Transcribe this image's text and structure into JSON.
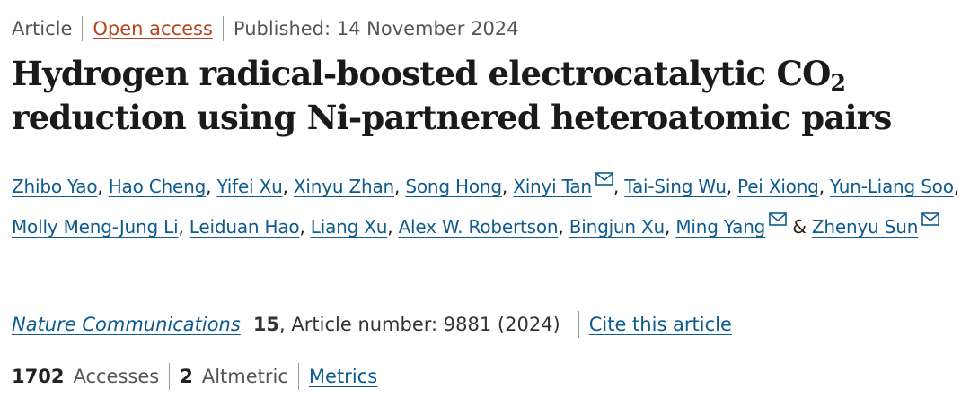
{
  "meta": {
    "type": "Article",
    "access": "Open access",
    "published": "Published: 14 November 2024"
  },
  "title": {
    "line1_main": "Hydrogen radical-boosted electrocatalytic CO",
    "line1_sub": "2",
    "line2": "reduction using Ni-partnered heteroatomic pairs"
  },
  "authors": [
    {
      "name": "Zhibo Yao",
      "email": false
    },
    {
      "name": "Hao Cheng",
      "email": false
    },
    {
      "name": "Yifei Xu",
      "email": false
    },
    {
      "name": "Xinyu Zhan",
      "email": false
    },
    {
      "name": "Song Hong",
      "email": false
    },
    {
      "name": "Xinyi Tan",
      "email": true
    },
    {
      "name": "Tai-Sing Wu",
      "email": false
    },
    {
      "name": "Pei Xiong",
      "email": false
    },
    {
      "name": "Yun-Liang Soo",
      "email": false
    },
    {
      "name": "Molly Meng-Jung Li",
      "email": false
    },
    {
      "name": "Leiduan Hao",
      "email": false
    },
    {
      "name": "Liang Xu",
      "email": false
    },
    {
      "name": "Alex W. Robertson",
      "email": false
    },
    {
      "name": "Bingjun Xu",
      "email": false
    },
    {
      "name": "Ming Yang",
      "email": true
    },
    {
      "name": "Zhenyu Sun",
      "email": true
    }
  ],
  "authors_separators": {
    "comma": ", ",
    "ampersand": " & "
  },
  "citation": {
    "journal": "Nature Communications",
    "volume": "15",
    "article_number": ", Article number: 9881 (2024)",
    "cite_link": "Cite this article"
  },
  "metrics": {
    "accesses_count": "1702",
    "accesses_label": "Accesses",
    "altmetric_count": "2",
    "altmetric_label": "Altmetric",
    "metrics_link": "Metrics"
  },
  "colors": {
    "link": "#0f5b8e",
    "open_access": "#b6461f"
  },
  "icons": {
    "email": "envelope-icon"
  }
}
